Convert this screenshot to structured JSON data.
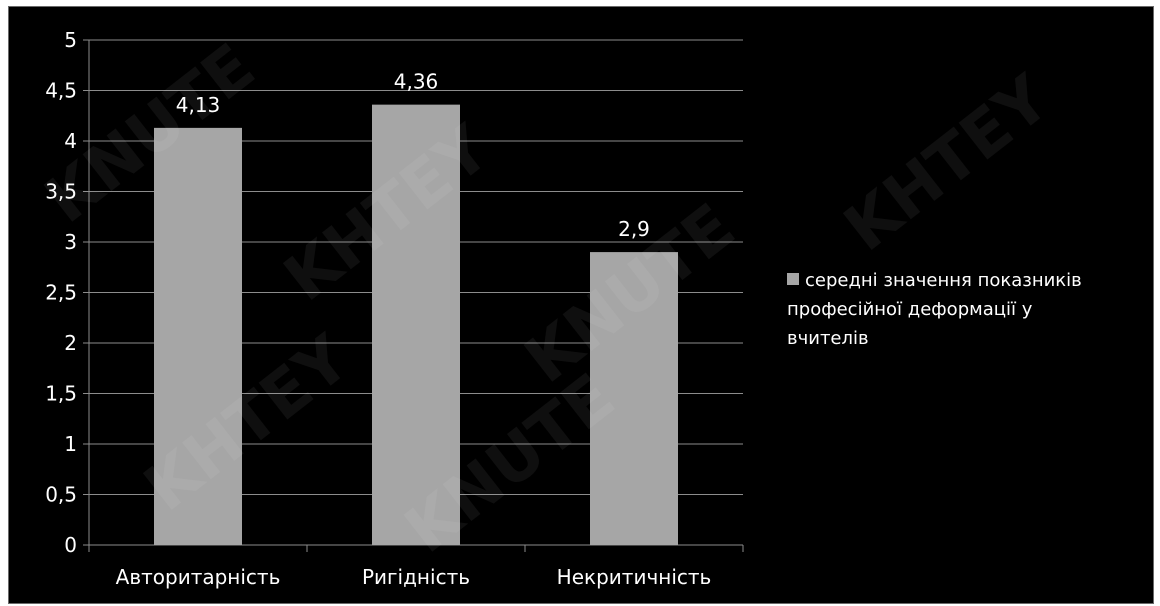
{
  "chart_data": {
    "type": "bar",
    "categories": [
      "Авторитарність",
      "Ригідність",
      "Некритичність"
    ],
    "series": [
      {
        "name": "середні значення показників професійної деформації у вчителів",
        "values": [
          4.13,
          4.36,
          2.9
        ],
        "labels": [
          "4,13",
          "4,36",
          "2,9"
        ],
        "color": "#a6a6a6"
      }
    ],
    "ylim": [
      0,
      5
    ],
    "yticks": [
      0,
      0.5,
      1,
      1.5,
      2,
      2.5,
      3,
      3.5,
      4,
      4.5,
      5
    ],
    "ytick_labels": [
      "0",
      "0,5",
      "1",
      "1,5",
      "2",
      "2,5",
      "3",
      "3,5",
      "4",
      "4,5",
      "5"
    ],
    "grid": true,
    "legend_position": "right",
    "background_color": "#000000",
    "gridline_color": "#8c8c8c",
    "text_color": "#ffffff"
  },
  "legend": {
    "lines": [
      "середні значення показників",
      "професійної деформації у",
      "вчителів"
    ]
  },
  "watermark": {
    "texts": [
      "KNUTE",
      "KHTEY",
      "KNUTE",
      "KHTEY",
      "KNUTE",
      "KHTEY"
    ]
  }
}
